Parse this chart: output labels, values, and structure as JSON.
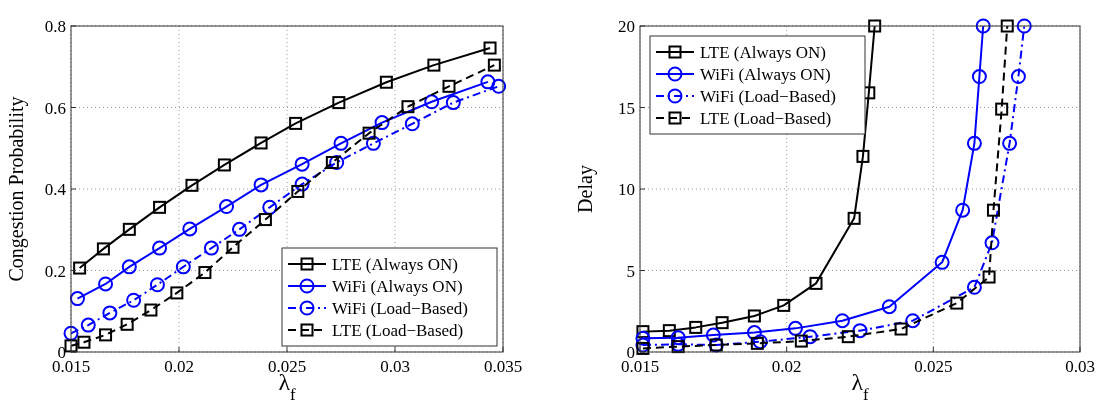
{
  "chart_data": [
    {
      "type": "line",
      "xlabel": "λ$_{f}$",
      "ylabel": "Congestion Probability",
      "xlim": [
        0.015,
        0.035
      ],
      "xticks": [
        0.015,
        0.02,
        0.025,
        0.03,
        0.035
      ],
      "ylim": [
        0,
        0.8
      ],
      "yticks": [
        0,
        0.2,
        0.4,
        0.6,
        0.8
      ],
      "grid": true,
      "legend": "bottom right",
      "series": [
        {
          "name": "LTE (Always ON)",
          "color": "#000000",
          "marker": "square",
          "line_style": "solid",
          "x": [
            0.0154,
            0.0165,
            0.0177,
            0.0191,
            0.0206,
            0.0221,
            0.0238,
            0.0254,
            0.0274,
            0.0296,
            0.0318,
            0.0344
          ],
          "values": [
            0.206,
            0.253,
            0.301,
            0.355,
            0.409,
            0.459,
            0.513,
            0.561,
            0.612,
            0.662,
            0.704,
            0.746
          ]
        },
        {
          "name": "WiFi (Always ON)",
          "color": "#0000ff",
          "marker": "circle",
          "line_style": "solid",
          "x": [
            0.0153,
            0.0166,
            0.0177,
            0.0191,
            0.0205,
            0.0222,
            0.0238,
            0.0257,
            0.0275,
            0.0294,
            0.0317,
            0.0343
          ],
          "values": [
            0.131,
            0.167,
            0.209,
            0.255,
            0.302,
            0.357,
            0.41,
            0.461,
            0.512,
            0.563,
            0.614,
            0.663
          ]
        },
        {
          "name": "WiFi (Load−Based)",
          "color": "#0000ff",
          "marker": "circle",
          "line_style": "dashdot",
          "x": [
            0.015,
            0.0158,
            0.0168,
            0.0179,
            0.019,
            0.0202,
            0.0215,
            0.0228,
            0.0242,
            0.0257,
            0.0273,
            0.029,
            0.0308,
            0.0327,
            0.0348
          ],
          "values": [
            0.046,
            0.066,
            0.096,
            0.127,
            0.165,
            0.209,
            0.255,
            0.301,
            0.355,
            0.412,
            0.465,
            0.512,
            0.56,
            0.612,
            0.652
          ]
        },
        {
          "name": "LTE (Load−Based)",
          "color": "#000000",
          "marker": "square",
          "line_style": "dashed",
          "x": [
            0.015,
            0.0156,
            0.0166,
            0.0176,
            0.0187,
            0.0199,
            0.0212,
            0.0225,
            0.024,
            0.0255,
            0.0271,
            0.0288,
            0.0306,
            0.0325,
            0.0346
          ],
          "values": [
            0.015,
            0.024,
            0.042,
            0.068,
            0.103,
            0.145,
            0.195,
            0.257,
            0.325,
            0.394,
            0.465,
            0.537,
            0.602,
            0.652,
            0.704
          ]
        }
      ]
    },
    {
      "type": "line",
      "xlabel": "λ$_{f}$",
      "ylabel": "Delay",
      "xlim": [
        0.015,
        0.03
      ],
      "xticks": [
        0.015,
        0.02,
        0.025,
        0.03
      ],
      "ylim": [
        0,
        20
      ],
      "yticks": [
        0,
        5,
        10,
        15,
        20
      ],
      "grid": true,
      "legend": "top left",
      "series": [
        {
          "name": "LTE (Always ON)",
          "color": "#000000",
          "marker": "square",
          "line_style": "solid",
          "x": [
            0.0151,
            0.016,
            0.0169,
            0.0178,
            0.0189,
            0.0199,
            0.021,
            0.0223,
            0.0226,
            0.0228,
            0.023
          ],
          "values": [
            1.25,
            1.31,
            1.51,
            1.8,
            2.21,
            2.86,
            4.21,
            8.2,
            12,
            15.9,
            20
          ]
        },
        {
          "name": "WiFi (Always ON)",
          "color": "#0000ff",
          "marker": "circle",
          "line_style": "solid",
          "x": [
            0.0151,
            0.0163,
            0.0175,
            0.0189,
            0.0203,
            0.0219,
            0.0235,
            0.0253,
            0.026,
            0.0264,
            0.02657,
            0.0267
          ],
          "values": [
            0.84,
            0.88,
            1.04,
            1.19,
            1.45,
            1.92,
            2.78,
            5.5,
            8.7,
            12.8,
            16.9,
            20
          ]
        },
        {
          "name": "WiFi (Load−Based)",
          "color": "#0000ff",
          "marker": "circle",
          "line_style": "dashdot",
          "x": [
            0.0151,
            0.0163,
            0.0176,
            0.0191,
            0.0208,
            0.0225,
            0.0243,
            0.0264,
            0.027,
            0.0276,
            0.0279,
            0.0281
          ],
          "values": [
            0.43,
            0.47,
            0.43,
            0.63,
            0.94,
            1.31,
            1.92,
            3.97,
            6.7,
            12.8,
            16.9,
            20
          ]
        },
        {
          "name": "LTE (Load−Based)",
          "color": "#000000",
          "marker": "square",
          "line_style": "dashed",
          "x": [
            0.0151,
            0.0163,
            0.0176,
            0.019,
            0.0205,
            0.0221,
            0.0239,
            0.0258,
            0.0269,
            0.02705,
            0.02733,
            0.02752
          ],
          "values": [
            0.22,
            0.33,
            0.43,
            0.53,
            0.67,
            0.94,
            1.41,
            3.0,
            4.6,
            8.7,
            14.9,
            20
          ]
        }
      ]
    }
  ]
}
